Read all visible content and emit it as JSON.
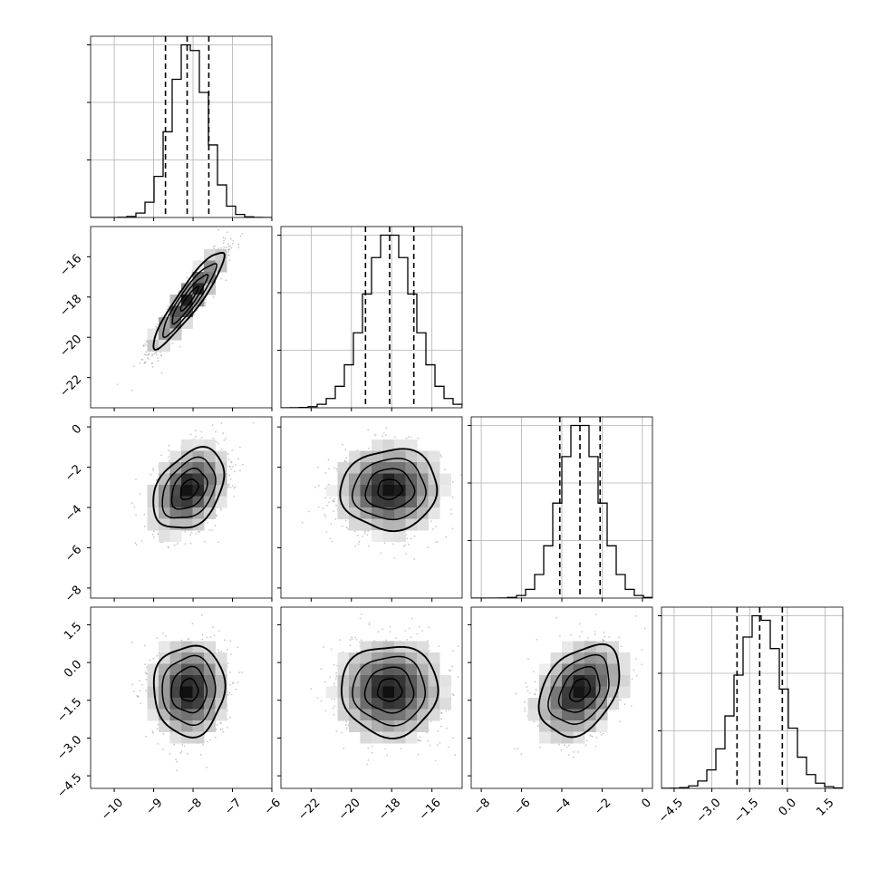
{
  "chart_data": {
    "type": "corner",
    "parameters": [
      {
        "index": 0,
        "range": [
          -10.6,
          -6.0
        ],
        "mean": -8.1,
        "sd": 0.45,
        "q16": -8.7,
        "q50": -8.15,
        "q84": -7.6,
        "ticks": [
          -10,
          -9,
          -8,
          -7,
          -6
        ],
        "tick_labels": [
          "−10",
          "−9",
          "−8",
          "−7",
          "−6"
        ]
      },
      {
        "index": 1,
        "range": [
          -23.5,
          -14.5
        ],
        "mean": -18.1,
        "sd": 1.2,
        "q16": -19.3,
        "q50": -18.1,
        "q84": -16.9,
        "ticks": [
          -22,
          -20,
          -18,
          -16
        ],
        "tick_labels": [
          "−22",
          "−20",
          "−18",
          "−16"
        ]
      },
      {
        "index": 2,
        "range": [
          -8.5,
          0.5
        ],
        "mean": -3.1,
        "sd": 1.0,
        "q16": -4.1,
        "q50": -3.1,
        "q84": -2.1,
        "ticks": [
          -8,
          -6,
          -4,
          -2,
          0
        ],
        "tick_labels": [
          "−8",
          "−6",
          "−4",
          "−2",
          "0"
        ]
      },
      {
        "index": 3,
        "range": [
          -5.0,
          2.2
        ],
        "mean": -1.1,
        "sd": 0.9,
        "q16": -2.0,
        "q50": -1.1,
        "q84": -0.2,
        "ticks": [
          -4.5,
          -3.0,
          -1.5,
          0.0,
          1.5
        ],
        "tick_labels": [
          "−4.5",
          "−3.0",
          "−1.5",
          "0.0",
          "1.5"
        ]
      }
    ],
    "correlations": [
      {
        "row": 1,
        "col": 0,
        "rho": 0.92
      },
      {
        "row": 2,
        "col": 0,
        "rho": 0.35
      },
      {
        "row": 2,
        "col": 1,
        "rho": 0.05
      },
      {
        "row": 3,
        "col": 0,
        "rho": 0.02
      },
      {
        "row": 3,
        "col": 1,
        "rho": 0.0
      },
      {
        "row": 3,
        "col": 2,
        "rho": 0.35
      }
    ],
    "histogram_bins": 20,
    "histogram_style": "step",
    "quantile_lines": "dashed",
    "grid": true,
    "scatter_points_per_panel": 1500,
    "scatter_color": "#9a9a9a",
    "density_colormap": [
      "#ffffff",
      "#000000"
    ],
    "contour_levels_sigma": [
      0.5,
      1.0,
      1.5,
      2.0
    ],
    "labels": []
  }
}
